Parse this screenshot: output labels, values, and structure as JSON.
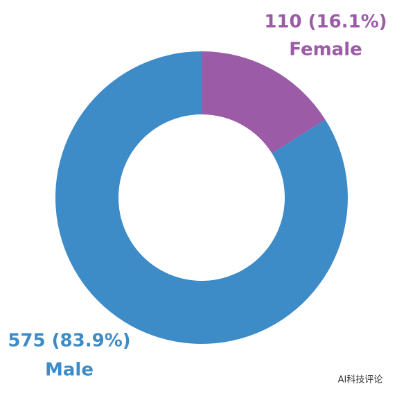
{
  "chart_data": {
    "type": "pie",
    "donut": true,
    "categories": [
      "Female",
      "Male"
    ],
    "values": [
      110,
      575
    ],
    "value_labels": [
      "110 (16.1%)",
      "575 (83.9%)"
    ],
    "colors": [
      "#9b5ba6",
      "#3d8bc7"
    ]
  },
  "watermark": "AI科技评论"
}
